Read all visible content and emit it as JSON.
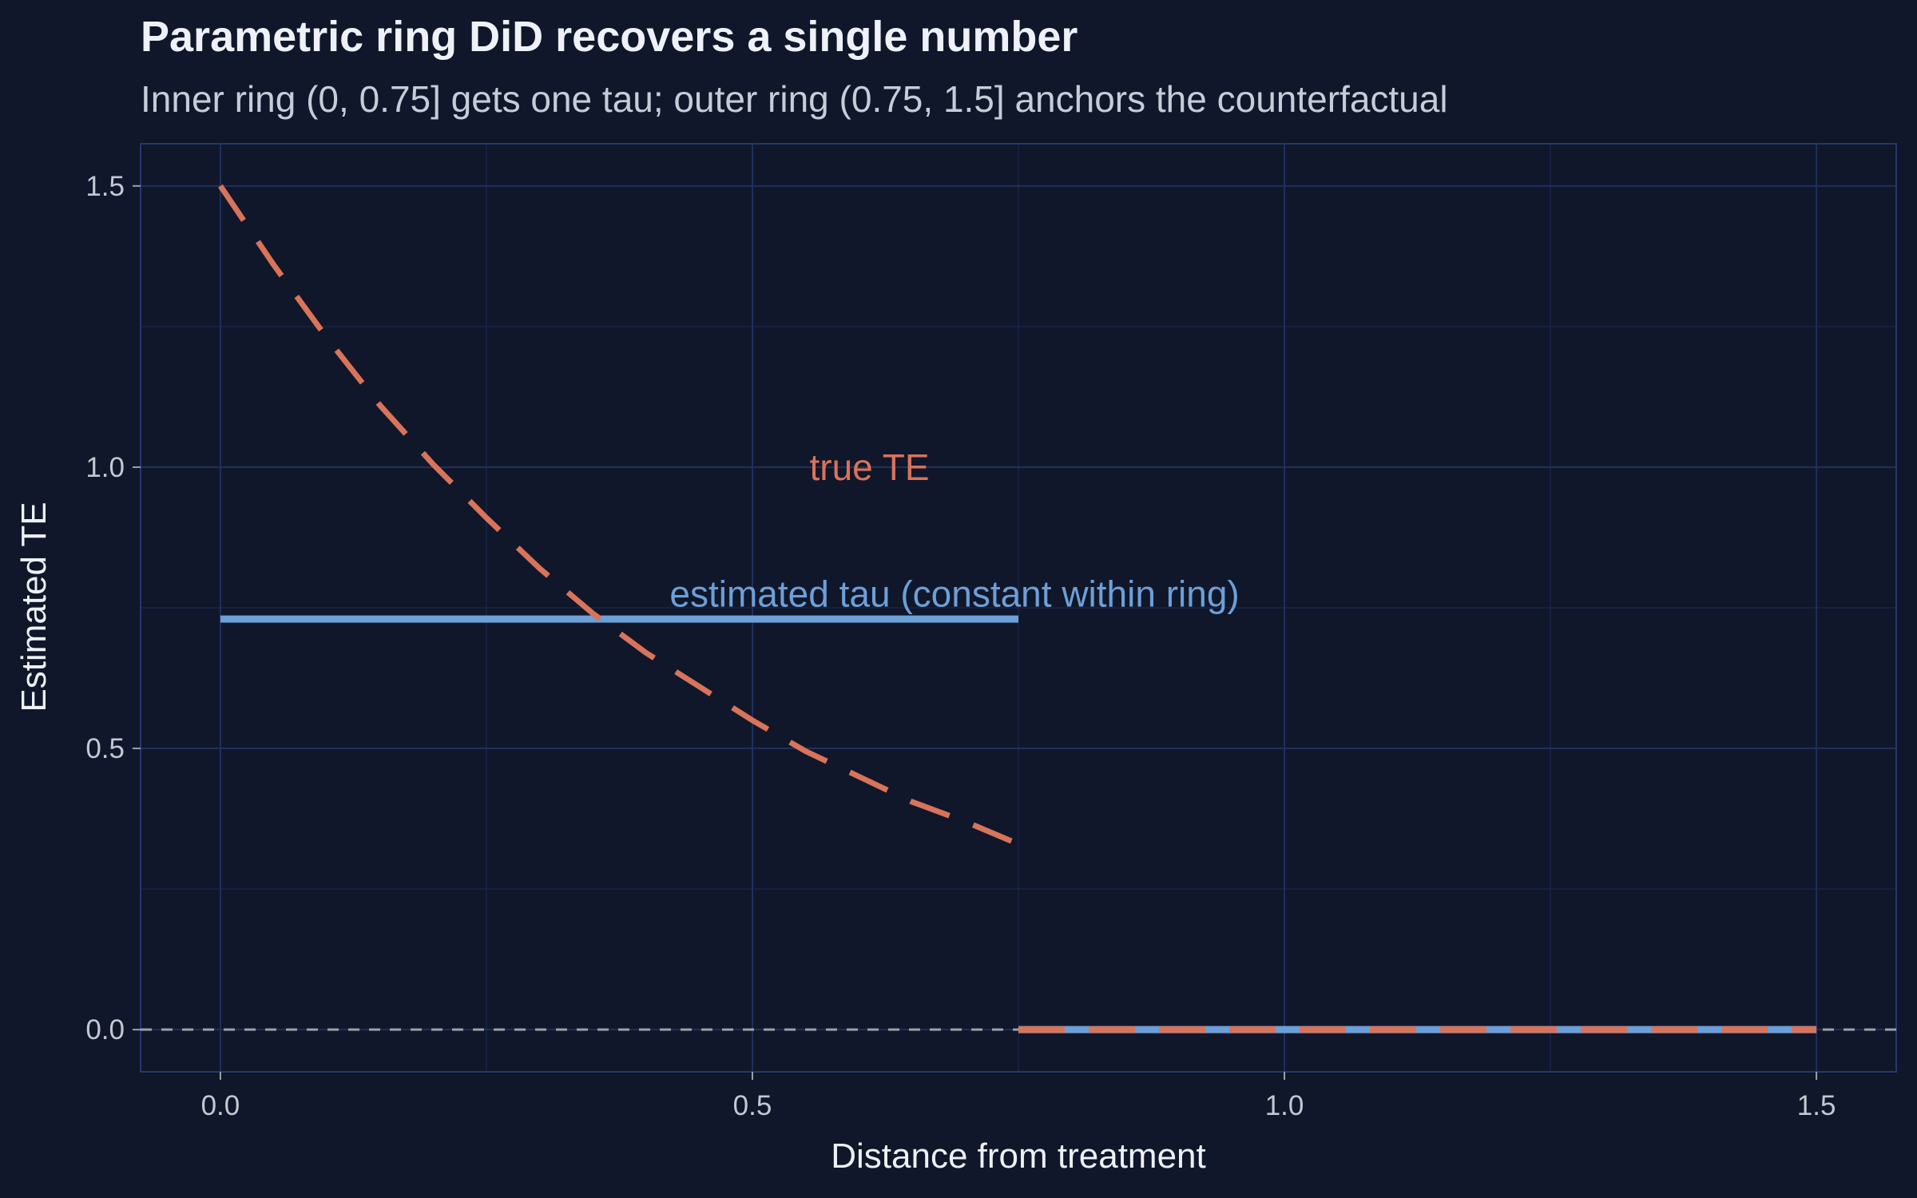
{
  "colors": {
    "background": "#10172a",
    "grid_major": "#1f2f5e",
    "grid_minor": "#18244a",
    "panel_border": "#24386b",
    "true_te": "#d9735a",
    "estimated_tau": "#6d9fd8",
    "zero_line": "#9aa0ab"
  },
  "chart_data": {
    "type": "line",
    "title": "Parametric ring DiD recovers a single number",
    "subtitle": "Inner ring (0, 0.75] gets one tau; outer ring (0.75, 1.5] anchors the counterfactual",
    "xlabel": "Distance from treatment",
    "ylabel": "Estimated TE",
    "xlim": [
      -0.075,
      1.575
    ],
    "ylim": [
      -0.075,
      1.575
    ],
    "x_ticks": [
      "0.0",
      "0.5",
      "1.0",
      "1.5"
    ],
    "y_ticks": [
      "0.0",
      "0.5",
      "1.0",
      "1.5"
    ],
    "grid": true,
    "legend": "none",
    "reference_line": {
      "y": 0,
      "style": "dashed"
    },
    "series": [
      {
        "name": "true TE",
        "style": "dashed",
        "x": [
          0.0,
          0.05,
          0.1,
          0.15,
          0.2,
          0.25,
          0.3,
          0.35,
          0.4,
          0.45,
          0.5,
          0.55,
          0.6,
          0.65,
          0.7,
          0.75,
          0.75,
          1.5
        ],
        "y": [
          1.5,
          1.36,
          1.23,
          1.11,
          1.005,
          0.91,
          0.82,
          0.74,
          0.67,
          0.61,
          0.55,
          0.495,
          0.45,
          0.405,
          0.37,
          0.33,
          0.0,
          0.0
        ]
      },
      {
        "name": "estimated tau (constant within ring)",
        "style": "solid",
        "x": [
          0.0,
          0.75,
          0.75,
          1.5
        ],
        "y": [
          0.73,
          0.73,
          0.0,
          0.0
        ]
      }
    ],
    "annotations": [
      {
        "text": "true TE",
        "x": 0.61,
        "y": 1.0
      },
      {
        "text": "estimated tau (constant within ring)",
        "x": 0.69,
        "y": 0.775
      }
    ]
  }
}
